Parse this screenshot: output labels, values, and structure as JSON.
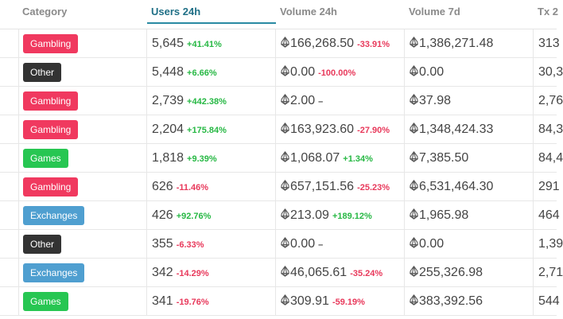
{
  "headers": {
    "category": "Category",
    "users": "Users 24h",
    "volume24": "Volume 24h",
    "volume7": "Volume 7d",
    "tx": "Tx 2"
  },
  "colors": {
    "Gambling": "#f0395f",
    "Other": "#333333",
    "Games": "#27c652",
    "Exchanges": "#4f9fd0"
  },
  "rows": [
    {
      "category": "Gambling",
      "users": "5,645",
      "users_chg": "+41.41%",
      "users_dir": "up",
      "vol24": "166,268.50",
      "vol24_chg": "-33.91%",
      "vol24_dir": "down",
      "vol7": "1,386,271.48",
      "tx": "313"
    },
    {
      "category": "Other",
      "users": "5,448",
      "users_chg": "+6.66%",
      "users_dir": "up",
      "vol24": "0.00",
      "vol24_chg": "-100.00%",
      "vol24_dir": "down",
      "vol7": "0.00",
      "tx": "30,3"
    },
    {
      "category": "Gambling",
      "users": "2,739",
      "users_chg": "+442.38%",
      "users_dir": "up",
      "vol24": "2.00",
      "vol24_chg": "–",
      "vol24_dir": "flat",
      "vol7": "37.98",
      "tx": "2,76"
    },
    {
      "category": "Gambling",
      "users": "2,204",
      "users_chg": "+175.84%",
      "users_dir": "up",
      "vol24": "163,923.60",
      "vol24_chg": "-27.90%",
      "vol24_dir": "down",
      "vol7": "1,348,424.33",
      "tx": "84,3"
    },
    {
      "category": "Games",
      "users": "1,818",
      "users_chg": "+9.39%",
      "users_dir": "up",
      "vol24": "1,068.07",
      "vol24_chg": "+1.34%",
      "vol24_dir": "up",
      "vol7": "7,385.50",
      "tx": "84,4"
    },
    {
      "category": "Gambling",
      "users": "626",
      "users_chg": "-11.46%",
      "users_dir": "down",
      "vol24": "657,151.56",
      "vol24_chg": "-25.23%",
      "vol24_dir": "down",
      "vol7": "6,531,464.30",
      "tx": "291"
    },
    {
      "category": "Exchanges",
      "users": "426",
      "users_chg": "+92.76%",
      "users_dir": "up",
      "vol24": "213.09",
      "vol24_chg": "+189.12%",
      "vol24_dir": "up",
      "vol7": "1,965.98",
      "tx": "464"
    },
    {
      "category": "Other",
      "users": "355",
      "users_chg": "-6.33%",
      "users_dir": "down",
      "vol24": "0.00",
      "vol24_chg": "–",
      "vol24_dir": "flat",
      "vol7": "0.00",
      "tx": "1,39"
    },
    {
      "category": "Exchanges",
      "users": "342",
      "users_chg": "-14.29%",
      "users_dir": "down",
      "vol24": "46,065.61",
      "vol24_chg": "-35.24%",
      "vol24_dir": "down",
      "vol7": "255,326.98",
      "tx": "2,71"
    },
    {
      "category": "Games",
      "users": "341",
      "users_chg": "-19.76%",
      "users_dir": "down",
      "vol24": "309.91",
      "vol24_chg": "-59.19%",
      "vol24_dir": "down",
      "vol7": "383,392.56",
      "tx": "544"
    }
  ]
}
